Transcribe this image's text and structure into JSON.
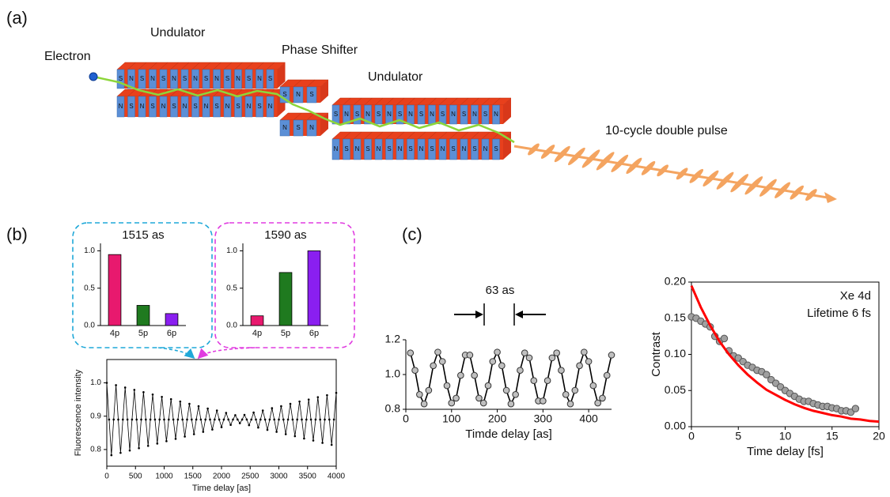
{
  "panel_labels": [
    "(a)",
    "(b)",
    "(c)"
  ],
  "diagram": {
    "electron": "Electron",
    "undulator_1": "Undulator",
    "phase_shifter": "Phase Shifter",
    "undulator_2": "Undulator",
    "pulse": "10-cycle double pulse",
    "pole_labels": [
      "S",
      "N"
    ]
  },
  "chart_data": [
    {
      "type": "bar",
      "title": "1515 as",
      "categories": [
        "4p",
        "5p",
        "6p"
      ],
      "values": [
        0.95,
        0.27,
        0.16
      ],
      "colors": [
        "#e8196e",
        "#1f7a1f",
        "#8a1ff0"
      ],
      "ylim": [
        0,
        1.1
      ],
      "yticks": [
        {
          "value": 0,
          "label": "0.0"
        },
        0.5,
        {
          "value": 1,
          "label": "1.0"
        }
      ]
    },
    {
      "type": "bar",
      "title": "1590 as",
      "categories": [
        "4p",
        "5p",
        "6p"
      ],
      "values": [
        0.13,
        0.71,
        1.0
      ],
      "colors": [
        "#e8196e",
        "#1f7a1f",
        "#8a1ff0"
      ],
      "ylim": [
        0,
        1.1
      ],
      "yticks": [
        {
          "value": 0,
          "label": "0.0"
        },
        0.5,
        {
          "value": 1,
          "label": "1.0"
        }
      ]
    },
    {
      "type": "line",
      "xlabel": "Time delay [as]",
      "ylabel": "Fluorescence intensity",
      "color": "#000000",
      "x": [
        0,
        40,
        80,
        120,
        160,
        200,
        240,
        280,
        320,
        360,
        400,
        440,
        480,
        520,
        560,
        600,
        640,
        680,
        720,
        760,
        800,
        840,
        880,
        920,
        960,
        1000,
        1040,
        1080,
        1120,
        1160,
        1200,
        1240,
        1280,
        1320,
        1360,
        1400,
        1440,
        1480,
        1520,
        1560,
        1600,
        1640,
        1680,
        1720,
        1760,
        1800,
        1840,
        1880,
        1920,
        1960,
        2000,
        2040,
        2080,
        2120,
        2160,
        2200,
        2240,
        2280,
        2320,
        2360,
        2400,
        2440,
        2480,
        2520,
        2560,
        2600,
        2640,
        2680,
        2720,
        2760,
        2800,
        2840,
        2880,
        2920,
        2960,
        3000,
        3040,
        3080,
        3120,
        3160,
        3200,
        3240,
        3280,
        3320,
        3360,
        3400,
        3440,
        3480,
        3520,
        3560,
        3600,
        3640,
        3680,
        3720,
        3760,
        3800,
        3840,
        3880,
        3920,
        3960,
        4000
      ],
      "values": [
        1.0,
        0.89,
        0.783,
        0.89,
        0.993,
        0.89,
        0.79,
        0.89,
        0.986,
        0.89,
        0.797,
        0.89,
        0.979,
        0.89,
        0.804,
        0.89,
        0.972,
        0.89,
        0.811,
        0.89,
        0.965,
        0.89,
        0.818,
        0.89,
        0.958,
        0.89,
        0.825,
        0.89,
        0.951,
        0.89,
        0.832,
        0.89,
        0.944,
        0.89,
        0.839,
        0.89,
        0.937,
        0.89,
        0.846,
        0.89,
        0.93,
        0.89,
        0.853,
        0.89,
        0.923,
        0.89,
        0.86,
        0.89,
        0.917,
        0.89,
        0.867,
        0.89,
        0.91,
        0.89,
        0.874,
        0.89,
        0.903,
        0.89,
        0.879,
        0.89,
        0.904,
        0.89,
        0.873,
        0.89,
        0.911,
        0.89,
        0.866,
        0.89,
        0.917,
        0.89,
        0.859,
        0.89,
        0.924,
        0.89,
        0.853,
        0.89,
        0.93,
        0.89,
        0.846,
        0.89,
        0.937,
        0.89,
        0.84,
        0.89,
        0.944,
        0.89,
        0.833,
        0.89,
        0.95,
        0.89,
        0.827,
        0.89,
        0.957,
        0.89,
        0.82,
        0.89,
        0.963,
        0.89,
        0.814,
        0.89,
        0.97
      ],
      "xlim": [
        0,
        4000
      ],
      "xticks": [
        0,
        500,
        1000,
        1500,
        2000,
        2500,
        3000,
        3500,
        4000
      ],
      "ylim": [
        0.75,
        1.07
      ],
      "yticks": [
        0.8,
        0.9,
        {
          "value": 1,
          "label": "1.0"
        }
      ]
    },
    {
      "type": "line",
      "xlabel": "Timde delay [as]",
      "annotation": "63 as",
      "color": "#000000",
      "x": [
        10,
        20,
        30,
        40,
        50,
        60,
        70,
        80,
        90,
        100,
        110,
        120,
        130,
        140,
        150,
        160,
        170,
        180,
        190,
        200,
        210,
        220,
        230,
        240,
        250,
        260,
        270,
        280,
        290,
        300,
        310,
        320,
        330,
        340,
        350,
        360,
        370,
        380,
        390,
        400,
        410,
        420,
        430,
        440,
        450
      ],
      "values": [
        1.124,
        1.024,
        0.885,
        0.831,
        0.909,
        1.051,
        1.129,
        1.075,
        0.936,
        0.836,
        0.864,
        0.995,
        1.112,
        1.112,
        0.995,
        0.864,
        0.836,
        0.936,
        1.075,
        1.129,
        1.051,
        0.909,
        0.831,
        0.885,
        1.024,
        1.124,
        1.096,
        0.965,
        0.848,
        0.848,
        0.965,
        1.096,
        1.124,
        1.024,
        0.885,
        0.831,
        0.909,
        1.051,
        1.129,
        1.075,
        0.936,
        0.836,
        0.864,
        0.995,
        1.112
      ],
      "xlim": [
        0,
        450
      ],
      "xticks": [
        0,
        100,
        200,
        300,
        400
      ],
      "ylim": [
        0.8,
        1.2
      ],
      "yticks": [
        0.8,
        {
          "value": 1,
          "label": "1.0"
        },
        1.2
      ]
    },
    {
      "type": "scatter",
      "xlabel": "Time delay [fs]",
      "ylabel": "Contrast",
      "annotations": [
        "Xe 4d",
        "Lifetime 6 fs"
      ],
      "series": [
        {
          "color": "#a0a0a0",
          "style": "markers",
          "x": [
            0,
            0.5,
            1,
            1.5,
            2,
            2.5,
            3,
            3.5,
            4,
            4.5,
            5,
            5.5,
            6,
            6.5,
            7,
            7.5,
            8,
            8.5,
            9,
            9.5,
            10,
            10.5,
            11,
            11.5,
            12,
            12.5,
            13,
            13.5,
            14,
            14.5,
            15,
            15.5,
            16,
            16.5,
            17,
            17.5
          ],
          "values": [
            0.152,
            0.15,
            0.146,
            0.142,
            0.138,
            0.125,
            0.118,
            0.122,
            0.105,
            0.098,
            0.095,
            0.09,
            0.085,
            0.082,
            0.078,
            0.076,
            0.072,
            0.065,
            0.06,
            0.055,
            0.05,
            0.046,
            0.042,
            0.038,
            0.035,
            0.035,
            0.032,
            0.03,
            0.028,
            0.028,
            0.026,
            0.025,
            0.022,
            0.022,
            0.02,
            0.025
          ]
        },
        {
          "color": "#ff0000",
          "style": "line",
          "x": [
            0,
            1,
            2,
            3,
            4,
            5,
            6,
            7,
            8,
            9,
            10,
            11,
            12,
            13,
            14,
            15,
            16,
            17,
            18,
            19,
            20
          ],
          "values": [
            0.195,
            0.165,
            0.14,
            0.118,
            0.1,
            0.085,
            0.072,
            0.061,
            0.051,
            0.044,
            0.037,
            0.031,
            0.026,
            0.022,
            0.019,
            0.016,
            0.014,
            0.011,
            0.01,
            0.008,
            0.007
          ]
        }
      ],
      "xlim": [
        0,
        20
      ],
      "xticks": [
        0,
        5,
        10,
        15,
        20
      ],
      "ylim": [
        0,
        0.2
      ],
      "yticks": [
        {
          "value": 0,
          "label": "0.00"
        },
        {
          "value": 0.05,
          "label": "0.05"
        },
        {
          "value": 0.1,
          "label": "0.10"
        },
        {
          "value": 0.15,
          "label": "0.15"
        },
        {
          "value": 0.2,
          "label": "0.20"
        }
      ]
    }
  ]
}
